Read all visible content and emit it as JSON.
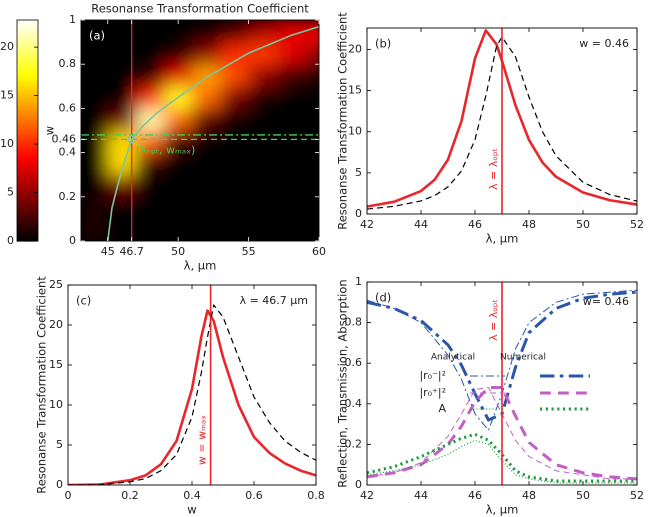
{
  "chart_data": [
    {
      "type": "heatmap",
      "title": "Resonanse Transformation Coefficient",
      "label": "(a)",
      "x_label": "λ,  μm",
      "y_label": "w",
      "xlim": [
        43.1,
        60
      ],
      "ylim": [
        0,
        1
      ],
      "xticks": [
        45,
        46.7,
        50,
        55,
        60
      ],
      "yticks": [
        0,
        0.2,
        0.4,
        0.46,
        0.6,
        0.8,
        1
      ],
      "x": [
        44,
        46,
        48,
        50,
        52,
        54,
        56,
        58,
        60
      ],
      "y": [
        0.05,
        0.15,
        0.25,
        0.35,
        0.45,
        0.55,
        0.65,
        0.75,
        0.85,
        0.95
      ],
      "z": [
        [
          1,
          0,
          0,
          0,
          0,
          0,
          0,
          0,
          0
        ],
        [
          1,
          0.2,
          0,
          0,
          0,
          0,
          0,
          0,
          0
        ],
        [
          0.2,
          3.7,
          0,
          0,
          0,
          0,
          0,
          0,
          0
        ],
        [
          0,
          16,
          1.6,
          0,
          0,
          0,
          0,
          0,
          0
        ],
        [
          0,
          16,
          12,
          2,
          0.2,
          0,
          0,
          0,
          0
        ],
        [
          0,
          3.8,
          21,
          12,
          3,
          0.4,
          0,
          0,
          0
        ],
        [
          0,
          0.2,
          10,
          18,
          12,
          4,
          0.8,
          0,
          0
        ],
        [
          0,
          0,
          1.3,
          7.7,
          14,
          11,
          5,
          2,
          0.8
        ],
        [
          0,
          0,
          0,
          1,
          4.7,
          10,
          10.5,
          7.5,
          4.7
        ],
        [
          0,
          0,
          0,
          0,
          0.5,
          2.5,
          6,
          8,
          8
        ]
      ],
      "colormap": "hot",
      "clim": [
        0,
        22.8
      ],
      "cticks": [
        0,
        5,
        10,
        15,
        20
      ],
      "curve": {
        "color": "#7fc4a0",
        "x": [
          45,
          45.3,
          45.7,
          46.2,
          46.7,
          47.5,
          48.5,
          50,
          52,
          55,
          58,
          60
        ],
        "y": [
          0,
          0.15,
          0.25,
          0.36,
          0.46,
          0.52,
          0.58,
          0.65,
          0.74,
          0.85,
          0.93,
          0.97
        ]
      },
      "vline": {
        "x": 46.7,
        "color": "#e8262b"
      },
      "hlines": [
        {
          "y": 0.48,
          "dash": "dashdot",
          "color": "#3ccf5a"
        },
        {
          "y": 0.46,
          "dash": "dashed",
          "color": "#3ccf5a"
        }
      ],
      "point": {
        "x": 46.7,
        "y": 0.46,
        "color": "#7fc4a0"
      },
      "annotation": "(λₒₚₜ, wₘₐₓ)"
    },
    {
      "type": "line",
      "label": "(b)",
      "x_label": "λ,  μm",
      "y_label": "Resonanse Transformation Coefficient",
      "note": "w = 0.46",
      "xlim": [
        42,
        52
      ],
      "ylim": [
        0,
        22.6
      ],
      "xticks": [
        42,
        44,
        46,
        48,
        50,
        52
      ],
      "yticks": [
        0,
        5,
        10,
        15,
        20
      ],
      "x": [
        42,
        43,
        44,
        44.5,
        45,
        45.5,
        46,
        46.4,
        46.8,
        47,
        47.5,
        48,
        48.5,
        49,
        50,
        51,
        52
      ],
      "series": [
        {
          "color": "#e8262b",
          "width": 2.6,
          "dash": "solid",
          "values": [
            0.91,
            1.48,
            2.79,
            4.14,
            6.61,
            11.3,
            18.9,
            22.3,
            20.6,
            18.6,
            13.2,
            9.0,
            6.26,
            4.52,
            2.61,
            1.67,
            1.15
          ]
        },
        {
          "color": "#000000",
          "width": 1.2,
          "dash": "dashed",
          "values": [
            0.6,
            0.93,
            1.59,
            2.23,
            3.29,
            5.23,
            9.03,
            14.35,
            20.4,
            21.5,
            19.1,
            14.2,
            10.0,
            7.07,
            3.85,
            2.35,
            1.56
          ]
        }
      ],
      "vline": {
        "x": 47,
        "color": "#e8262b",
        "label": "λ = λₒₚₜ"
      }
    },
    {
      "type": "line",
      "label": "(c)",
      "x_label": "w",
      "y_label": "Resonanse Transformation Coefficient",
      "note": "λ = 46.7 μm",
      "xlim": [
        0,
        0.8
      ],
      "ylim": [
        0,
        25
      ],
      "xticks": [
        0,
        0.2,
        0.4,
        0.6,
        0.8
      ],
      "yticks": [
        0,
        5,
        10,
        15,
        20,
        25
      ],
      "x": [
        0,
        0.1,
        0.2,
        0.25,
        0.3,
        0.35,
        0.4,
        0.43,
        0.45,
        0.47,
        0.5,
        0.55,
        0.6,
        0.65,
        0.7,
        0.75,
        0.8
      ],
      "series": [
        {
          "color": "#e8262b",
          "width": 2.6,
          "dash": "solid",
          "values": [
            0,
            0.05,
            0.6,
            1.2,
            2.6,
            5.5,
            12,
            18.5,
            21.8,
            20.5,
            16,
            10,
            6,
            4,
            2.7,
            1.8,
            1.2
          ]
        },
        {
          "color": "#000000",
          "width": 1.2,
          "dash": "dashed",
          "values": [
            0,
            0.03,
            0.4,
            0.8,
            1.8,
            3.8,
            8.5,
            14,
            18.5,
            22.5,
            21,
            16,
            11,
            7.8,
            5.5,
            4.1,
            3.1
          ]
        }
      ],
      "vline": {
        "x": 0.46,
        "color": "#e8262b",
        "label": "w = wₘₐₓ"
      }
    },
    {
      "type": "line",
      "label": "(d)",
      "x_label": "λ,  μm",
      "y_label": "Reflection, Transmission, Absorption",
      "note": "w= 0.46",
      "xlim": [
        42,
        52
      ],
      "ylim": [
        0,
        1
      ],
      "xticks": [
        42,
        44,
        46,
        48,
        50,
        52
      ],
      "yticks": [
        0,
        0.2,
        0.4,
        0.6,
        0.8,
        1
      ],
      "x": [
        42,
        43,
        44,
        45,
        45.5,
        46,
        46.5,
        47,
        47.5,
        48,
        49,
        50,
        51,
        52
      ],
      "series": [
        {
          "color": "#2a56a8",
          "width": 1,
          "dash": "dashdot",
          "values": [
            0.91,
            0.87,
            0.8,
            0.64,
            0.52,
            0.35,
            0.27,
            0.45,
            0.67,
            0.8,
            0.9,
            0.94,
            0.95,
            0.96
          ]
        },
        {
          "color": "#2a56a8",
          "width": 3,
          "dash": "dashdot",
          "values": [
            0.9,
            0.87,
            0.81,
            0.69,
            0.59,
            0.45,
            0.32,
            0.35,
            0.58,
            0.75,
            0.87,
            0.92,
            0.94,
            0.95
          ]
        },
        {
          "color": "#c25fc4",
          "width": 1,
          "dash": "dashed",
          "values": [
            0.04,
            0.06,
            0.11,
            0.24,
            0.35,
            0.47,
            0.48,
            0.35,
            0.22,
            0.14,
            0.07,
            0.05,
            0.03,
            0.03
          ]
        },
        {
          "color": "#c25fc4",
          "width": 3,
          "dash": "dashed",
          "values": [
            0.04,
            0.06,
            0.1,
            0.2,
            0.29,
            0.41,
            0.48,
            0.48,
            0.34,
            0.21,
            0.1,
            0.06,
            0.04,
            0.03
          ]
        },
        {
          "color": "#1f9a3c",
          "width": 1,
          "dash": "dotted",
          "values": [
            0.05,
            0.07,
            0.1,
            0.15,
            0.19,
            0.22,
            0.2,
            0.12,
            0.05,
            0.03,
            0.01,
            0.01,
            0.01,
            0.01
          ]
        },
        {
          "color": "#1f9a3c",
          "width": 3,
          "dash": "dotted",
          "values": [
            0.06,
            0.09,
            0.14,
            0.2,
            0.23,
            0.25,
            0.22,
            0.15,
            0.07,
            0.04,
            0.02,
            0.02,
            0.02,
            0.02
          ]
        }
      ],
      "vline": {
        "x": 47,
        "color": "#e8262b",
        "label": "λ = λₒₚₜ"
      },
      "legend": {
        "headers": [
          "Analytical",
          "Numerical"
        ],
        "rows": [
          {
            "label": "|r₀⁻|²",
            "series": [
              0,
              1
            ]
          },
          {
            "label": "|r₀⁺|²",
            "series": [
              2,
              3
            ]
          },
          {
            "label": "A",
            "series": [
              4,
              5
            ]
          }
        ]
      }
    }
  ]
}
